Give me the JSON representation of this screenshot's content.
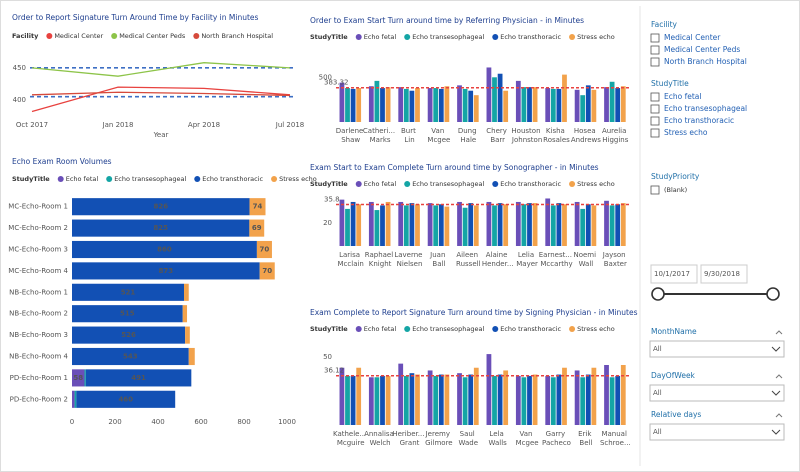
{
  "chart_data": [
    {
      "type": "line",
      "title": "Order to Report Signature Turn Around Time by Facility in Minutes",
      "legend_title": "Facility",
      "categories": [
        "Oct 2017",
        "Jan 2018",
        "Apr 2018",
        "Jul 2018"
      ],
      "x_label": "Year",
      "series": [
        {
          "name": "Medical Center",
          "color": "#e8423f",
          "values": [
            382,
            420,
            418,
            408
          ]
        },
        {
          "name": "Medical Center Peds",
          "color": "#8dc449",
          "values": [
            450,
            437,
            458,
            450
          ]
        },
        {
          "name": "North Branch Hospital",
          "color": "#d64a3b",
          "values": [
            408,
            412,
            410,
            407
          ]
        }
      ],
      "reference_lines": [
        450,
        405
      ],
      "reference_color": "#3e6fc4",
      "ylim": [
        375,
        470
      ],
      "yticks": [
        400,
        450
      ]
    },
    {
      "type": "hbar",
      "title": "Echo Exam Room Volumes",
      "legend_title": "StudyTitle",
      "categories": [
        "MC-Echo-Room 1",
        "MC-Echo-Room 2",
        "MC-Echo-Room 3",
        "MC-Echo-Room 4",
        "NB-Echo-Room 1",
        "NB-Echo-Room 2",
        "NB-Echo-Room 3",
        "NB-Echo-Room 4",
        "PD-Echo-Room 1",
        "PD-Echo-Room 2"
      ],
      "series": [
        {
          "name": "Echo fetal",
          "color": "#6a4fb8",
          "values": [
            0,
            0,
            0,
            0,
            0,
            0,
            0,
            0,
            58,
            12
          ]
        },
        {
          "name": "Echo transesophageal",
          "color": "#14a5a5",
          "values": [
            0,
            0,
            0,
            0,
            0,
            0,
            0,
            0,
            6,
            8
          ]
        },
        {
          "name": "Echo transthoracic",
          "color": "#1250b4",
          "values": [
            826,
            825,
            860,
            873,
            521,
            515,
            526,
            543,
            491,
            460
          ]
        },
        {
          "name": "Stress echo",
          "color": "#f2a24b",
          "values": [
            74,
            69,
            70,
            70,
            22,
            20,
            22,
            28,
            0,
            0
          ]
        }
      ],
      "xlim": [
        0,
        1000
      ],
      "xticks": [
        0,
        200,
        400,
        600,
        800,
        1000
      ]
    },
    {
      "type": "grouped",
      "title": "Order to Exam Start Turn around time by Referring Physician - in Minutes",
      "legend_title": "StudyTitle",
      "categories": [
        "Darlene Shaw",
        "Catheri... Marks",
        "Burt Lin",
        "Van Mcgee",
        "Dung Hale",
        "Chery Barr",
        "Houston Johnston",
        "Kisha Rosales",
        "Hosea Andrews",
        "Aurelia Higgins"
      ],
      "series": [
        {
          "name": "Echo fetal",
          "color": "#6a4fb8",
          "values": [
            440,
            400,
            390,
            380,
            410,
            610,
            460,
            380,
            360,
            390
          ]
        },
        {
          "name": "Echo transesophageal",
          "color": "#14a5a5",
          "values": [
            380,
            460,
            370,
            380,
            370,
            500,
            390,
            370,
            300,
            450
          ]
        },
        {
          "name": "Echo transthoracic",
          "color": "#1250b4",
          "values": [
            370,
            380,
            350,
            370,
            350,
            540,
            390,
            370,
            410,
            380
          ]
        },
        {
          "name": "Stress echo",
          "color": "#f2a24b",
          "values": [
            380,
            390,
            380,
            400,
            300,
            350,
            390,
            530,
            360,
            400
          ]
        }
      ],
      "average": 383.32,
      "average_color": "#e8423f",
      "ylim": [
        0,
        660
      ],
      "yticks": [
        500
      ]
    },
    {
      "type": "grouped",
      "title": "Exam Start to Exam Complete Turn around time by Sonographer - in Minutes",
      "legend_title": "StudyTitle",
      "categories": [
        "Larisa Mcclain",
        "Raphael Knight",
        "Laverne Nielsen",
        "Juan Ball",
        "Aileen Russell",
        "Alaine Hender...",
        "Lelia Mayer",
        "Earnest... Mccarthy",
        "Noemi Wall",
        "Jayson Baxter"
      ],
      "series": [
        {
          "name": "Echo fetal",
          "color": "#6a4fb8",
          "values": [
            40,
            38,
            38,
            37,
            38,
            38,
            38,
            41,
            38,
            39
          ]
        },
        {
          "name": "Echo transesophageal",
          "color": "#14a5a5",
          "values": [
            32,
            31,
            35,
            35,
            33,
            35,
            36,
            35,
            32,
            35
          ]
        },
        {
          "name": "Echo transthoracic",
          "color": "#1250b4",
          "values": [
            38,
            35,
            37,
            36,
            37,
            37,
            37,
            37,
            36,
            36
          ]
        },
        {
          "name": "Stress echo",
          "color": "#f2a24b",
          "values": [
            36,
            38,
            36,
            34,
            35,
            36,
            37,
            36,
            35,
            37
          ]
        }
      ],
      "average": 35.8,
      "average_color": "#e8423f",
      "ylim": [
        0,
        44
      ],
      "yticks": [
        20
      ]
    },
    {
      "type": "grouped",
      "title": "Exam Complete to Report Signature Turn around time by Signing Physician - in Minutes",
      "legend_title": "StudyTitle",
      "categories": [
        "Kathele... Mcguire",
        "Annalisa Welch",
        "Heriber... Grant",
        "Jeremy Gilmore",
        "Saul Wade",
        "Lela Walls",
        "Van Mcgee",
        "Garry Pacheco",
        "Erik Bell",
        "Manual Schroe..."
      ],
      "series": [
        {
          "name": "Echo fetal",
          "color": "#6a4fb8",
          "values": [
            42,
            35,
            45,
            40,
            38,
            52,
            36,
            36,
            40,
            44
          ]
        },
        {
          "name": "Echo transesophageal",
          "color": "#14a5a5",
          "values": [
            36,
            35,
            36,
            36,
            35,
            36,
            35,
            35,
            35,
            35
          ]
        },
        {
          "name": "Echo transthoracic",
          "color": "#1250b4",
          "values": [
            36,
            36,
            38,
            37,
            37,
            37,
            36,
            37,
            37,
            36
          ]
        },
        {
          "name": "Stress echo",
          "color": "#f2a24b",
          "values": [
            42,
            36,
            37,
            37,
            42,
            40,
            37,
            42,
            42,
            44
          ]
        }
      ],
      "average": 36.12,
      "average_color": "#e8423f",
      "ylim": [
        0,
        55
      ],
      "yticks": [
        50
      ]
    }
  ],
  "slicers": {
    "checklists": [
      {
        "title": "Facility",
        "items": [
          "Medical Center",
          "Medical Center Peds",
          "North Branch Hospital"
        ]
      },
      {
        "title": "StudyTitle",
        "items": [
          "Echo fetal",
          "Echo transesophageal",
          "Echo transthoracic",
          "Stress echo"
        ]
      },
      {
        "title": "StudyPriority",
        "items": [
          "(Blank)"
        ]
      }
    ],
    "date_range": {
      "start": "10/1/2017",
      "end": "9/30/2018"
    },
    "dropdowns": [
      {
        "title": "MonthName",
        "value": "All"
      },
      {
        "title": "DayOfWeek",
        "value": "All"
      },
      {
        "title": "Relative days",
        "value": "All"
      }
    ]
  }
}
